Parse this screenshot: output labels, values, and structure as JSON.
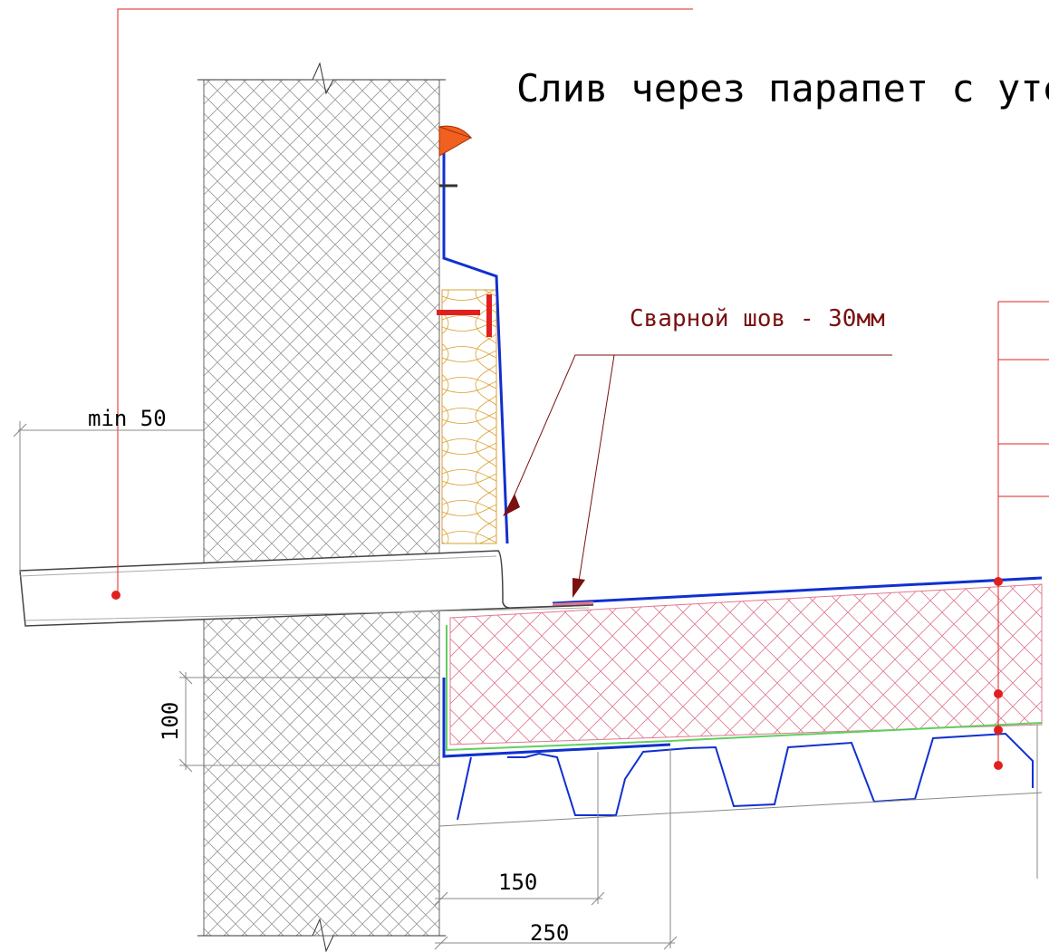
{
  "title": "Слив через парапет с утеп",
  "weld_note": "Сварной шов - 30мм",
  "dimensions": {
    "min_offset": "min 50",
    "height": "100",
    "overlap_short": "150",
    "overlap_long": "250"
  }
}
